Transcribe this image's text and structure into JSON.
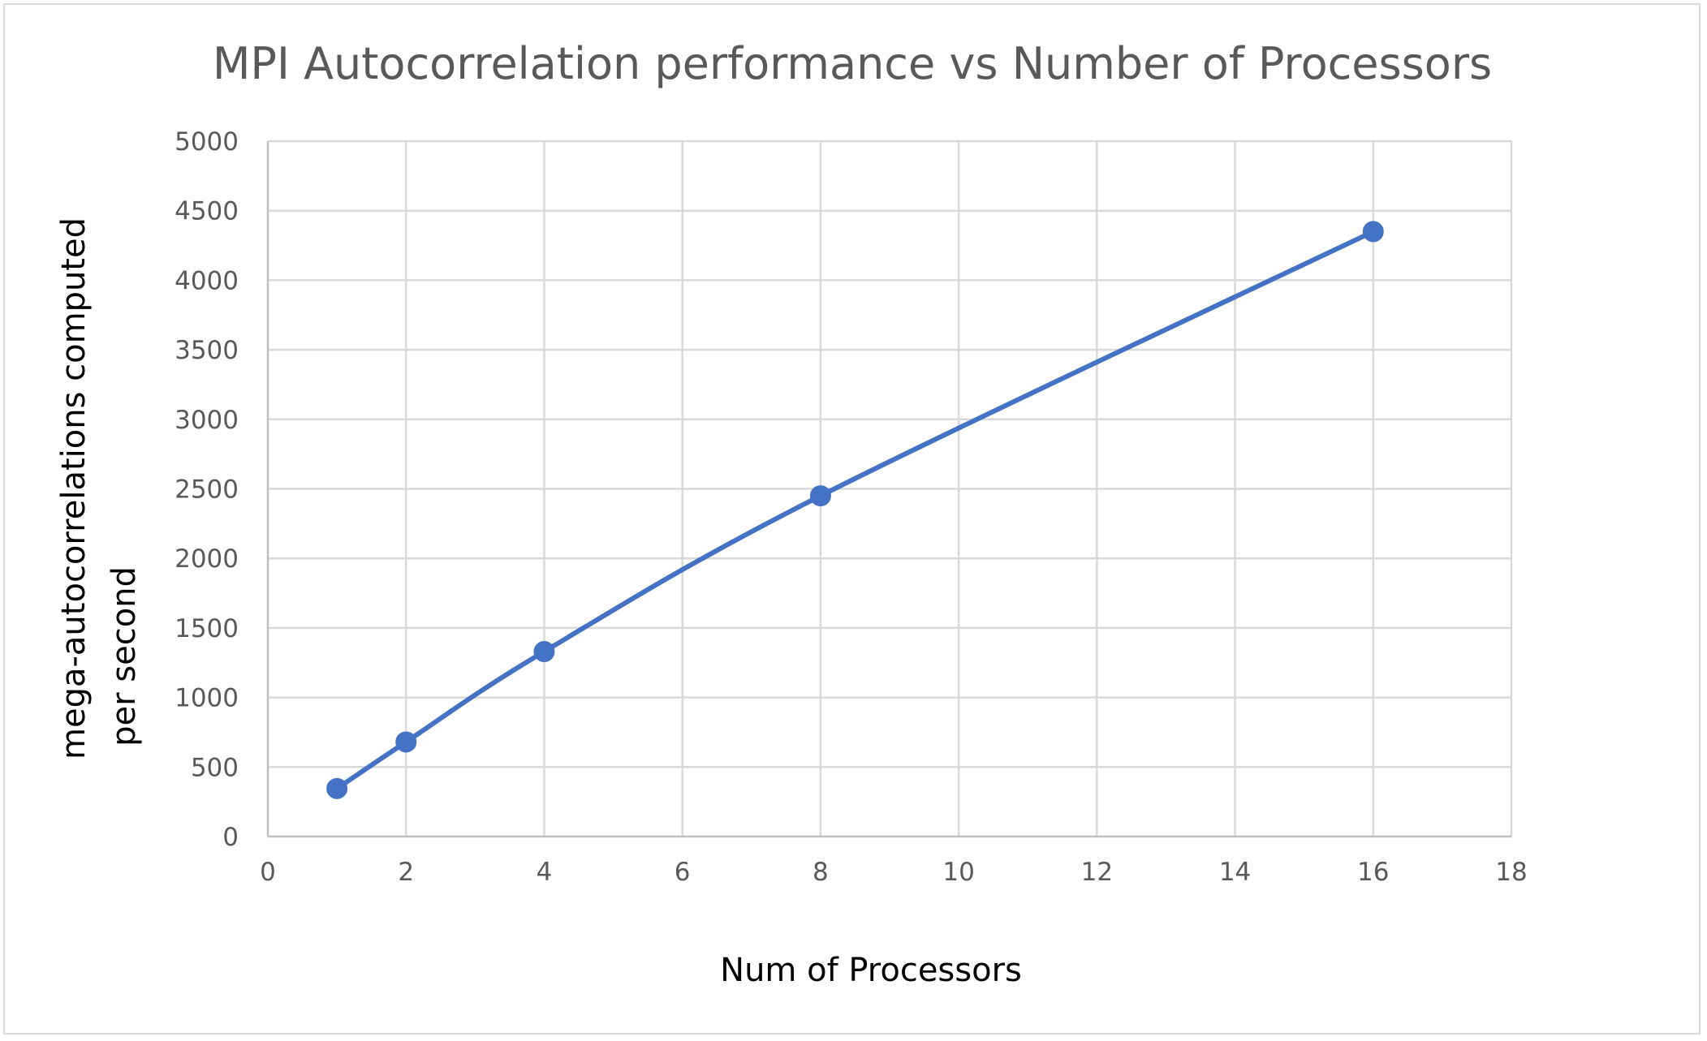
{
  "chart_data": {
    "type": "line",
    "title": "MPI Autocorrelation performance  vs Number of Processors",
    "xlabel": "Num of Processors",
    "ylabel_lines": [
      "mega-autocorrelations computed",
      "per second"
    ],
    "xlim": [
      0,
      18
    ],
    "ylim": [
      0,
      5000
    ],
    "x_ticks": [
      "0",
      "2",
      "4",
      "6",
      "8",
      "10",
      "12",
      "14",
      "16",
      "18"
    ],
    "y_ticks": [
      "0",
      "500",
      "1000",
      "1500",
      "2000",
      "2500",
      "3000",
      "3500",
      "4000",
      "4500",
      "5000"
    ],
    "grid": true,
    "legend": "none",
    "series": [
      {
        "x": [
          1,
          2,
          4,
          8,
          16
        ],
        "y": [
          345,
          680,
          1330,
          2450,
          4350
        ],
        "color": "#4472c4",
        "smooth": true,
        "markers": true
      }
    ]
  }
}
